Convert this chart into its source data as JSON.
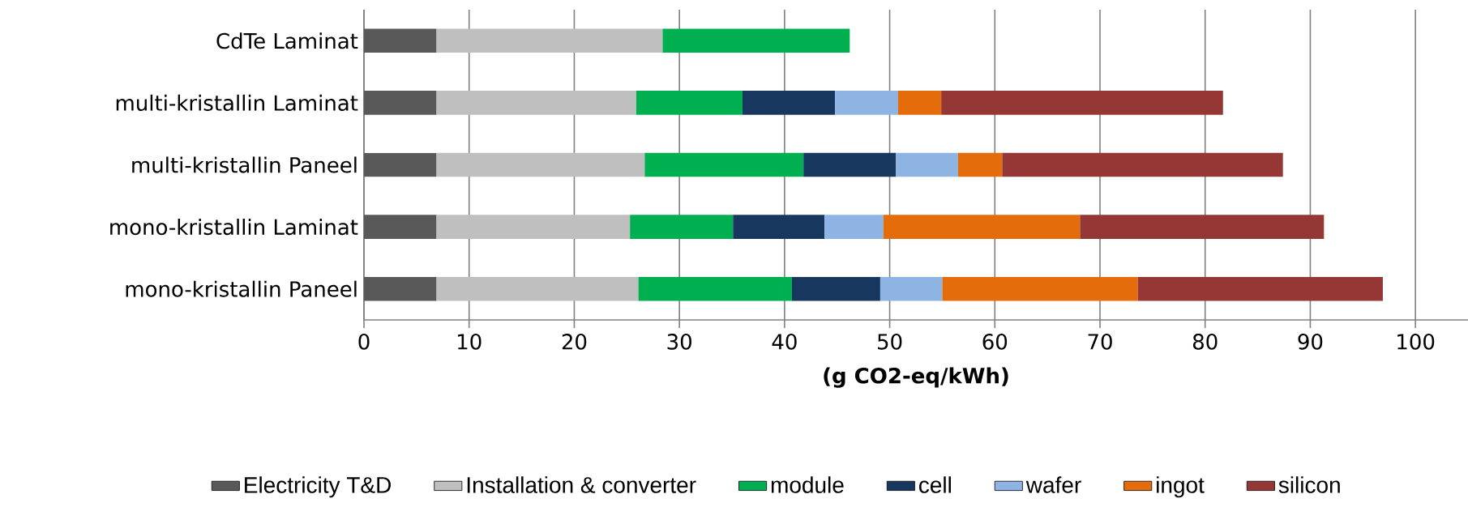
{
  "chart_data": {
    "type": "bar",
    "orientation": "horizontal",
    "stacked": true,
    "categories": [
      "CdTe Laminat",
      "multi-kristallin Laminat",
      "multi-kristallin Paneel",
      "mono-kristallin Laminat",
      "mono-kristallin Paneel"
    ],
    "xlabel": "(g CO2-eq/kWh)",
    "series": [
      {
        "name": "Electricity T&D",
        "color": "#595959",
        "values": [
          6.9,
          6.9,
          6.9,
          6.9,
          6.9
        ]
      },
      {
        "name": "Installation & converter",
        "color": "#bfbfbf",
        "values": [
          21.5,
          19.0,
          19.8,
          18.4,
          19.2
        ]
      },
      {
        "name": "module",
        "color": "#00b050",
        "values": [
          17.8,
          10.1,
          15.1,
          9.8,
          14.6
        ]
      },
      {
        "name": "cell",
        "color": "#17375e",
        "values": [
          null,
          8.8,
          8.8,
          8.7,
          8.4
        ]
      },
      {
        "name": "wafer",
        "color": "#8eb4e3",
        "values": [
          null,
          6.0,
          5.9,
          5.6,
          5.9
        ]
      },
      {
        "name": "ingot",
        "color": "#e46c0a",
        "values": [
          null,
          4.1,
          4.2,
          18.7,
          18.6
        ]
      },
      {
        "name": "silicon",
        "color": "#953735",
        "values": [
          null,
          26.8,
          26.7,
          23.2,
          23.3
        ]
      }
    ],
    "xlim": [
      0,
      105
    ],
    "xticks": [
      0,
      10,
      20,
      30,
      40,
      50,
      60,
      70,
      80,
      90,
      100
    ],
    "grid": "x",
    "legend": "bottom"
  }
}
